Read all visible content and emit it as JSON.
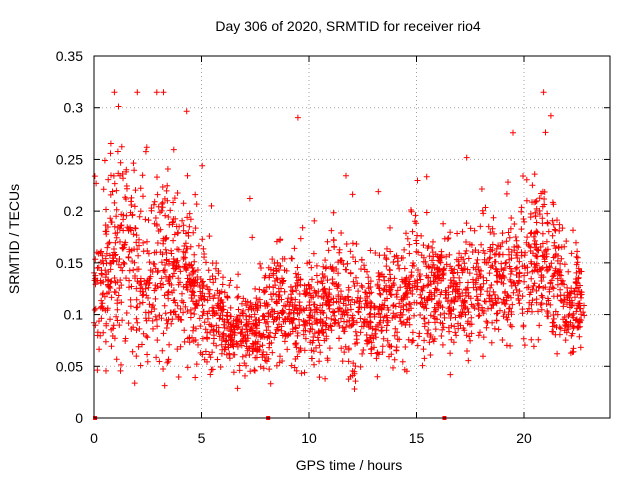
{
  "chart_data": {
    "type": "scatter",
    "title": "Day 306 of 2020, SRMTID for receiver rio4",
    "xlabel": "GPS time / hours",
    "ylabel": "SRMTID / TECUs",
    "xlim": [
      0,
      24
    ],
    "ylim": [
      0,
      0.35
    ],
    "grid": true,
    "legend": "none",
    "marker": "+",
    "color": "#ff0000",
    "x_ticks": [
      0,
      5,
      10,
      15,
      20
    ],
    "x_tick_labels": [
      "0",
      "5",
      "10",
      "15",
      "20"
    ],
    "y_ticks": [
      0,
      0.05,
      0.1,
      0.15,
      0.2,
      0.25,
      0.3,
      0.35
    ],
    "y_tick_labels": [
      "0",
      "0.05",
      "0.1",
      "0.15",
      "0.2",
      "0.25",
      "0.3",
      "0.35"
    ],
    "zero_markers": {
      "x": [
        0.05,
        8.1,
        16.3
      ],
      "y": [
        0,
        0,
        0
      ]
    },
    "density_profile": {
      "description": "approximate trend of the point cloud; individual scatter points are sampled around these values",
      "hours": [
        0,
        0.5,
        1,
        1.5,
        2,
        2.5,
        3,
        3.5,
        4,
        4.5,
        5,
        5.5,
        6,
        6.5,
        7,
        7.5,
        8,
        8.5,
        9,
        9.5,
        10,
        10.5,
        11,
        11.5,
        12,
        12.5,
        13,
        13.5,
        14,
        14.5,
        15,
        15.5,
        16,
        16.5,
        17,
        17.5,
        18,
        18.5,
        19,
        19.5,
        20,
        20.5,
        21,
        21.5,
        22,
        22.5,
        22.8
      ],
      "median": [
        0.13,
        0.13,
        0.15,
        0.16,
        0.14,
        0.13,
        0.15,
        0.14,
        0.14,
        0.13,
        0.11,
        0.1,
        0.09,
        0.08,
        0.08,
        0.09,
        0.09,
        0.11,
        0.1,
        0.1,
        0.1,
        0.1,
        0.11,
        0.11,
        0.1,
        0.1,
        0.1,
        0.11,
        0.11,
        0.12,
        0.12,
        0.12,
        0.12,
        0.12,
        0.12,
        0.12,
        0.13,
        0.13,
        0.13,
        0.13,
        0.14,
        0.16,
        0.15,
        0.13,
        0.11,
        0.11,
        0.11
      ],
      "spread": [
        0.04,
        0.05,
        0.06,
        0.06,
        0.06,
        0.05,
        0.06,
        0.06,
        0.05,
        0.04,
        0.04,
        0.035,
        0.03,
        0.025,
        0.025,
        0.03,
        0.035,
        0.04,
        0.035,
        0.035,
        0.035,
        0.035,
        0.04,
        0.04,
        0.035,
        0.035,
        0.035,
        0.035,
        0.035,
        0.035,
        0.04,
        0.04,
        0.035,
        0.035,
        0.035,
        0.035,
        0.04,
        0.04,
        0.04,
        0.04,
        0.04,
        0.05,
        0.05,
        0.045,
        0.035,
        0.035,
        0.035
      ]
    },
    "approx_point_count": 2600
  }
}
